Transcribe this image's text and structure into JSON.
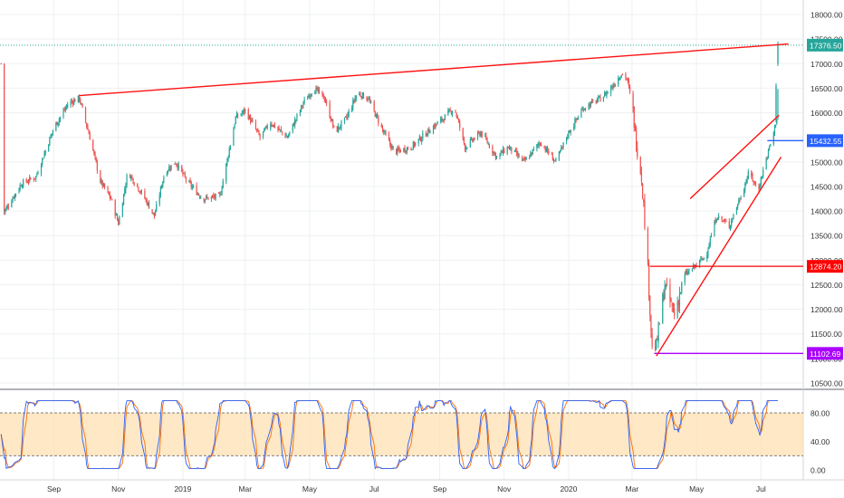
{
  "colors": {
    "up": "#26a69a",
    "down": "#ef5350",
    "trend_red": "#ff1111",
    "blue_level": "#2962ff",
    "red_level": "#ff0000",
    "purple_level": "#aa00ff",
    "price_line": "#26a69a",
    "stoch_k": "#2962ff",
    "stoch_d": "#ff6d00",
    "stoch_band": "#ffe0b2",
    "grid": "#eef0f3",
    "axis_text": "#333333"
  },
  "chart_data": [
    {
      "type": "candlestick",
      "title": "",
      "x_ticks": [
        "Sep",
        "Nov",
        "2019",
        "Mar",
        "May",
        "Jul",
        "Sep",
        "Nov",
        "2020",
        "Mar",
        "May",
        "Jul"
      ],
      "y_ticks": [
        10500,
        11000,
        11500,
        12000,
        12500,
        13000,
        13500,
        14000,
        14500,
        15000,
        15500,
        16000,
        16500,
        17000,
        17500,
        18000
      ],
      "y_tick_labels": [
        "10500.00",
        "11000.00",
        "11500.00",
        "12000.00",
        "12500.00",
        "13000.00",
        "13500.00",
        "14000.00",
        "14500.00",
        "15000.00",
        "15500.00",
        "16000.00",
        "16500.00",
        "17000.00",
        "17500.00",
        "18000.00"
      ],
      "ylim": [
        10350,
        18200
      ],
      "grid": true,
      "close_series_keypoints": [
        [
          "2018-07-15",
          13950
        ],
        [
          "2018-08-01",
          14550
        ],
        [
          "2018-08-15",
          14700
        ],
        [
          "2018-09-01",
          15700
        ],
        [
          "2018-09-15",
          16200
        ],
        [
          "2018-09-25",
          16300
        ],
        [
          "2018-10-05",
          15500
        ],
        [
          "2018-10-15",
          14600
        ],
        [
          "2018-10-25",
          14250
        ],
        [
          "2018-11-01",
          13750
        ],
        [
          "2018-11-10",
          14800
        ],
        [
          "2018-11-25",
          14300
        ],
        [
          "2018-12-05",
          13900
        ],
        [
          "2018-12-15",
          14800
        ],
        [
          "2018-12-25",
          15000
        ],
        [
          "2019-01-05",
          14600
        ],
        [
          "2019-01-20",
          14250
        ],
        [
          "2019-02-05",
          14300
        ],
        [
          "2019-02-20",
          15900
        ],
        [
          "2019-03-01",
          16050
        ],
        [
          "2019-03-15",
          15500
        ],
        [
          "2019-03-25",
          15800
        ],
        [
          "2019-04-10",
          15500
        ],
        [
          "2019-04-25",
          16200
        ],
        [
          "2019-05-05",
          16500
        ],
        [
          "2019-05-15",
          16300
        ],
        [
          "2019-05-25",
          15600
        ],
        [
          "2019-06-05",
          15900
        ],
        [
          "2019-06-15",
          16400
        ],
        [
          "2019-06-25",
          16300
        ],
        [
          "2019-07-10",
          15600
        ],
        [
          "2019-07-20",
          15200
        ],
        [
          "2019-08-05",
          15300
        ],
        [
          "2019-08-20",
          15600
        ],
        [
          "2019-09-05",
          15900
        ],
        [
          "2019-09-15",
          16100
        ],
        [
          "2019-09-25",
          15300
        ],
        [
          "2019-10-10",
          15600
        ],
        [
          "2019-10-25",
          15100
        ],
        [
          "2019-11-05",
          15300
        ],
        [
          "2019-11-20",
          15000
        ],
        [
          "2019-12-05",
          15400
        ],
        [
          "2019-12-20",
          15000
        ],
        [
          "2020-01-01",
          15600
        ],
        [
          "2020-01-15",
          16100
        ],
        [
          "2020-02-01",
          16300
        ],
        [
          "2020-02-10",
          16500
        ],
        [
          "2020-02-20",
          16800
        ],
        [
          "2020-02-25",
          16700
        ],
        [
          "2020-03-01",
          16200
        ],
        [
          "2020-03-05",
          15400
        ],
        [
          "2020-03-10",
          14700
        ],
        [
          "2020-03-15",
          13200
        ],
        [
          "2020-03-20",
          11200
        ],
        [
          "2020-03-24",
          11250
        ],
        [
          "2020-04-01",
          12500
        ],
        [
          "2020-04-10",
          11900
        ],
        [
          "2020-04-20",
          12700
        ],
        [
          "2020-05-01",
          12900
        ],
        [
          "2020-05-10",
          13100
        ],
        [
          "2020-05-20",
          13900
        ],
        [
          "2020-06-01",
          13700
        ],
        [
          "2020-06-10",
          14200
        ],
        [
          "2020-06-20",
          14800
        ],
        [
          "2020-06-28",
          14400
        ],
        [
          "2020-07-05",
          15000
        ],
        [
          "2020-07-12",
          15500
        ],
        [
          "2020-07-16",
          15900
        ],
        [
          "2020-07-18",
          17000
        ]
      ],
      "horizontal_levels": [
        {
          "value": 17376.5,
          "label": "17376.50",
          "style": "dotted",
          "color_key": "price_line"
        },
        {
          "value": 15432.55,
          "label": "15432.55",
          "color_key": "blue_level"
        },
        {
          "value": 12874.2,
          "label": "12874.20",
          "color_key": "red_level"
        },
        {
          "value": 11102.69,
          "label": "11102.69",
          "color_key": "purple_level"
        }
      ],
      "trendlines": [
        {
          "from": [
            "2018-09-25",
            16350
          ],
          "to": [
            "2020-07-27",
            17400
          ],
          "color_key": "trend_red"
        },
        {
          "from": [
            "2020-03-24",
            11050
          ],
          "to": [
            "2020-07-20",
            15100
          ],
          "color_key": "trend_red"
        },
        {
          "from": [
            "2020-04-25",
            14250
          ],
          "to": [
            "2020-07-18",
            15950
          ],
          "color_key": "trend_red"
        }
      ]
    },
    {
      "type": "line",
      "title": "",
      "y_ticks": [
        0,
        40,
        80
      ],
      "y_tick_labels": [
        "0.00",
        "40.00",
        "80.00"
      ],
      "ylim": [
        -8,
        110
      ],
      "band": [
        20,
        80
      ],
      "series": [
        {
          "color_key": "stoch_k"
        },
        {
          "color_key": "stoch_d"
        }
      ]
    }
  ]
}
